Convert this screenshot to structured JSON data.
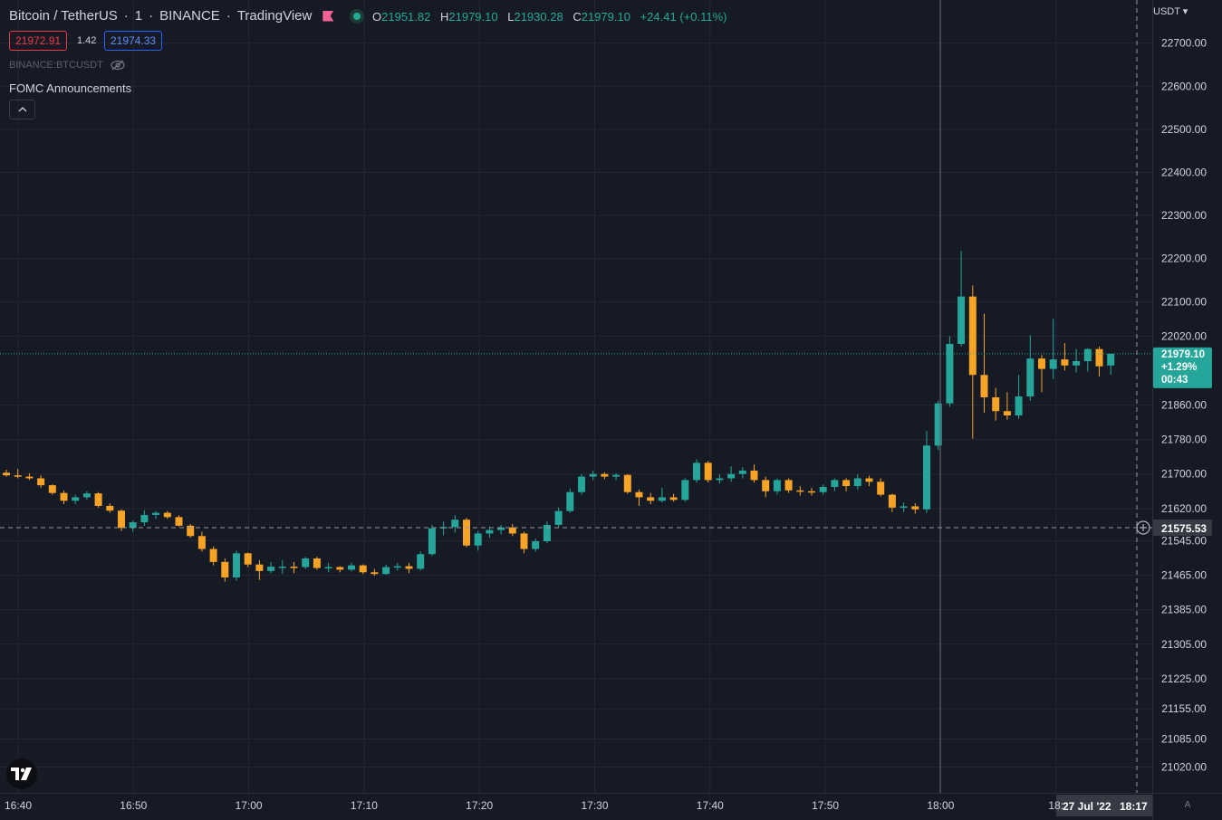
{
  "header": {
    "symbol": "Bitcoin / TetherUS",
    "interval": "1",
    "exchange": "BINANCE",
    "source": "TradingView",
    "ohlc": {
      "o_label": "O",
      "o": "21951.82",
      "h_label": "H",
      "h": "21979.10",
      "l_label": "L",
      "l": "21930.28",
      "c_label": "C",
      "c": "21979.10",
      "change": "+24.41 (+0.11%)"
    }
  },
  "trade": {
    "sell": "21972.91",
    "spread": "1.42",
    "buy": "21974.33"
  },
  "legend": {
    "symbol_id": "BINANCE:BTCUSDT",
    "indicator": "FOMC Announcements"
  },
  "axis": {
    "currency": "USDT"
  },
  "last_price": {
    "value": "21979.10",
    "change": "+1.29%",
    "countdown": "00:43"
  },
  "crosshair": {
    "price": "21575.53",
    "date": "27 Jul '22",
    "time": "18:17"
  },
  "colors": {
    "bg": "#161a25",
    "up": "#26a69a",
    "down": "#f7a325",
    "grid": "#242733",
    "text": "#d1d4dc"
  },
  "chart_data": {
    "type": "candlestick",
    "x_ticks": [
      "16:40",
      "16:50",
      "17:00",
      "17:10",
      "17:20",
      "17:30",
      "17:40",
      "17:50",
      "18:00",
      "18:"
    ],
    "y_ticks": [
      "22700.00",
      "22600.00",
      "22500.00",
      "22400.00",
      "22300.00",
      "22200.00",
      "22100.00",
      "22020.00",
      "21860.00",
      "21780.00",
      "21700.00",
      "21620.00",
      "21545.00",
      "21465.00",
      "21385.00",
      "21305.00",
      "21225.00",
      "21155.00",
      "21085.00",
      "21020.00"
    ],
    "ylim": [
      20960,
      22775
    ],
    "candles": [
      [
        21703,
        21710,
        21694,
        21697
      ],
      [
        21697,
        21712,
        21690,
        21694
      ],
      [
        21694,
        21702,
        21686,
        21690
      ],
      [
        21690,
        21697,
        21668,
        21674
      ],
      [
        21674,
        21676,
        21652,
        21656
      ],
      [
        21656,
        21662,
        21630,
        21638
      ],
      [
        21638,
        21652,
        21630,
        21646
      ],
      [
        21646,
        21660,
        21640,
        21655
      ],
      [
        21655,
        21658,
        21622,
        21626
      ],
      [
        21626,
        21632,
        21610,
        21615
      ],
      [
        21615,
        21618,
        21568,
        21575
      ],
      [
        21575,
        21592,
        21566,
        21588
      ],
      [
        21588,
        21616,
        21580,
        21605
      ],
      [
        21605,
        21614,
        21596,
        21610
      ],
      [
        21610,
        21614,
        21596,
        21600
      ],
      [
        21600,
        21604,
        21578,
        21580
      ],
      [
        21580,
        21584,
        21552,
        21556
      ],
      [
        21556,
        21566,
        21520,
        21526
      ],
      [
        21526,
        21532,
        21488,
        21496
      ],
      [
        21496,
        21504,
        21450,
        21460
      ],
      [
        21460,
        21522,
        21452,
        21516
      ],
      [
        21516,
        21518,
        21484,
        21490
      ],
      [
        21490,
        21500,
        21454,
        21475
      ],
      [
        21475,
        21496,
        21470,
        21485
      ],
      [
        21485,
        21500,
        21468,
        21485
      ],
      [
        21485,
        21496,
        21470,
        21484
      ],
      [
        21484,
        21508,
        21480,
        21504
      ],
      [
        21504,
        21508,
        21478,
        21482
      ],
      [
        21482,
        21494,
        21472,
        21484
      ],
      [
        21484,
        21486,
        21472,
        21478
      ],
      [
        21478,
        21494,
        21474,
        21488
      ],
      [
        21488,
        21490,
        21468,
        21472
      ],
      [
        21472,
        21480,
        21464,
        21468
      ],
      [
        21468,
        21490,
        21466,
        21484
      ],
      [
        21484,
        21494,
        21476,
        21486
      ],
      [
        21486,
        21494,
        21470,
        21480
      ],
      [
        21480,
        21520,
        21476,
        21514
      ],
      [
        21514,
        21582,
        21510,
        21574
      ],
      [
        21574,
        21590,
        21558,
        21577
      ],
      [
        21577,
        21604,
        21564,
        21594
      ],
      [
        21594,
        21598,
        21530,
        21534
      ],
      [
        21534,
        21568,
        21522,
        21562
      ],
      [
        21562,
        21578,
        21552,
        21570
      ],
      [
        21570,
        21582,
        21560,
        21576
      ],
      [
        21576,
        21584,
        21556,
        21562
      ],
      [
        21562,
        21566,
        21516,
        21526
      ],
      [
        21526,
        21550,
        21520,
        21544
      ],
      [
        21544,
        21590,
        21540,
        21582
      ],
      [
        21582,
        21622,
        21576,
        21614
      ],
      [
        21614,
        21666,
        21610,
        21658
      ],
      [
        21658,
        21700,
        21652,
        21694
      ],
      [
        21694,
        21708,
        21686,
        21700
      ],
      [
        21700,
        21704,
        21688,
        21694
      ],
      [
        21694,
        21702,
        21686,
        21698
      ],
      [
        21698,
        21700,
        21654,
        21658
      ],
      [
        21658,
        21664,
        21626,
        21646
      ],
      [
        21646,
        21656,
        21630,
        21638
      ],
      [
        21638,
        21668,
        21634,
        21646
      ],
      [
        21646,
        21654,
        21636,
        21640
      ],
      [
        21640,
        21690,
        21636,
        21686
      ],
      [
        21686,
        21734,
        21680,
        21726
      ],
      [
        21726,
        21730,
        21680,
        21686
      ],
      [
        21686,
        21700,
        21678,
        21690
      ],
      [
        21690,
        21718,
        21682,
        21700
      ],
      [
        21700,
        21716,
        21690,
        21708
      ],
      [
        21708,
        21722,
        21680,
        21686
      ],
      [
        21686,
        21694,
        21646,
        21660
      ],
      [
        21660,
        21690,
        21652,
        21686
      ],
      [
        21686,
        21690,
        21656,
        21662
      ],
      [
        21662,
        21672,
        21650,
        21660
      ],
      [
        21660,
        21668,
        21650,
        21658
      ],
      [
        21658,
        21676,
        21652,
        21670
      ],
      [
        21670,
        21690,
        21660,
        21686
      ],
      [
        21686,
        21690,
        21660,
        21672
      ],
      [
        21672,
        21700,
        21664,
        21690
      ],
      [
        21690,
        21696,
        21672,
        21682
      ],
      [
        21682,
        21690,
        21648,
        21652
      ],
      [
        21652,
        21654,
        21612,
        21622
      ],
      [
        21622,
        21634,
        21612,
        21625
      ],
      [
        21625,
        21632,
        21608,
        21618
      ],
      [
        21618,
        21800,
        21610,
        21766
      ],
      [
        21766,
        21870,
        21756,
        21864
      ],
      [
        21864,
        22020,
        21856,
        22002
      ],
      [
        22002,
        22218,
        21996,
        22112
      ],
      [
        22112,
        22138,
        21782,
        21930
      ],
      [
        21930,
        22072,
        21842,
        21878
      ],
      [
        21878,
        21900,
        21824,
        21846
      ],
      [
        21846,
        21890,
        21826,
        21836
      ],
      [
        21836,
        21930,
        21828,
        21880
      ],
      [
        21880,
        22022,
        21870,
        21968
      ],
      [
        21968,
        21976,
        21890,
        21944
      ],
      [
        21944,
        22060,
        21920,
        21966
      ],
      [
        21966,
        22004,
        21940,
        21952
      ],
      [
        21952,
        21990,
        21936,
        21962
      ],
      [
        21962,
        21992,
        21938,
        21990
      ],
      [
        21990,
        21996,
        21926,
        21950
      ],
      [
        21951.82,
        21979.1,
        21930.28,
        21979.1
      ]
    ]
  }
}
